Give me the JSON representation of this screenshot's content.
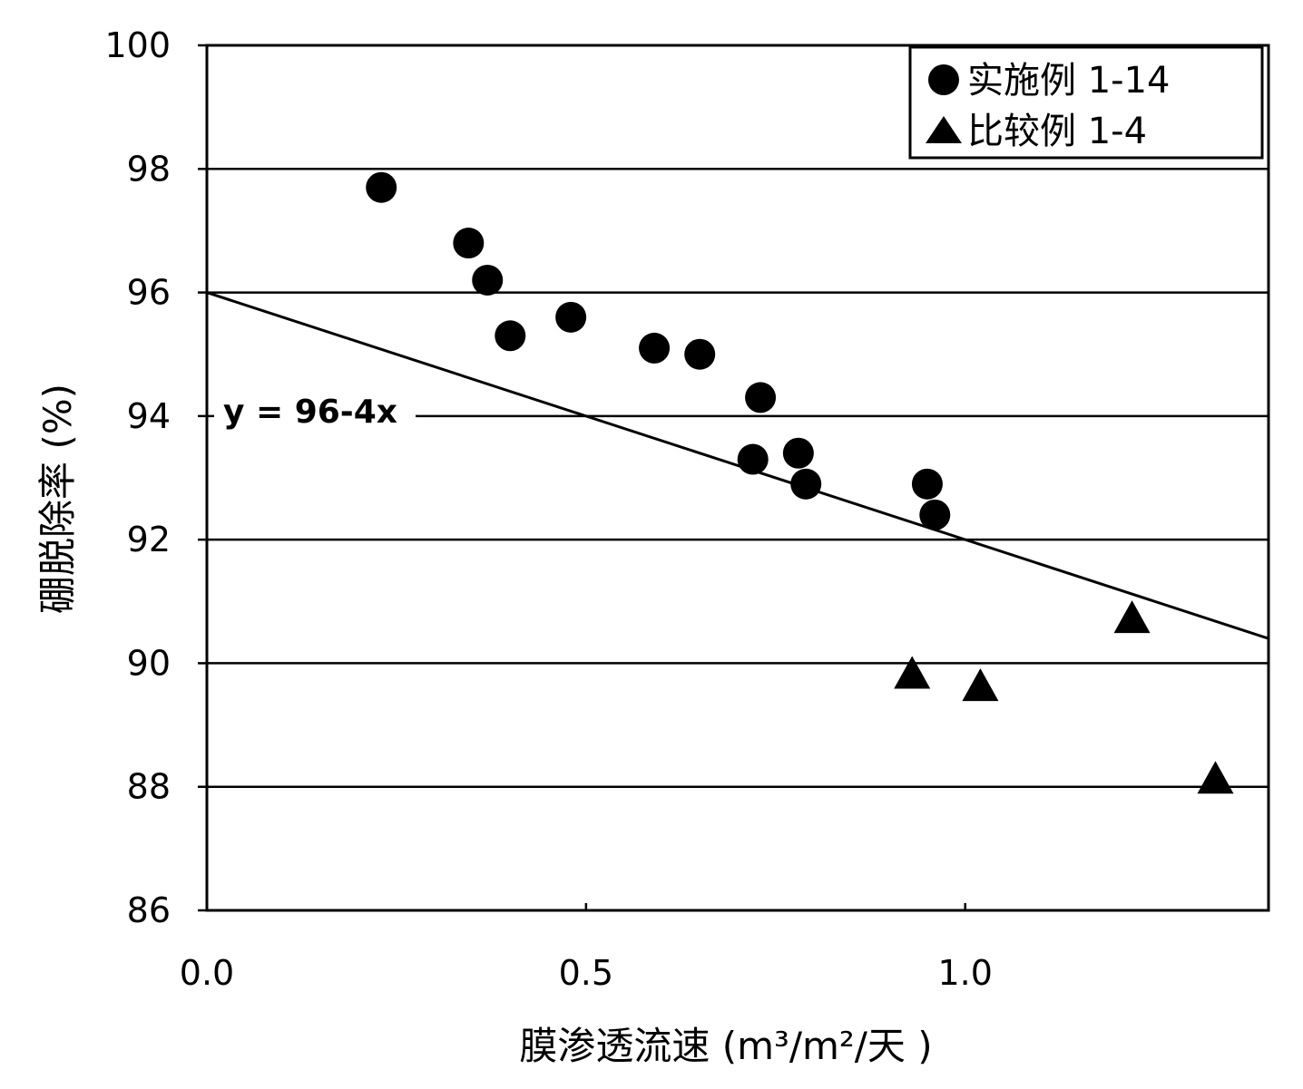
{
  "chart_data": {
    "type": "scatter",
    "xlabel": "膜渗透流速 (m³/m²/天 )",
    "ylabel": "硼脱除率 (%)",
    "xlim": [
      0.0,
      1.4
    ],
    "ylim": [
      86,
      100
    ],
    "x_ticks": [
      0.0,
      0.5,
      1.0
    ],
    "x_tick_labels": [
      "0.0",
      "0.5",
      "1.0"
    ],
    "y_ticks": [
      86,
      88,
      90,
      92,
      94,
      96,
      98,
      100
    ],
    "y_tick_labels": [
      "86",
      "88",
      "90",
      "92",
      "94",
      "96",
      "98",
      "100"
    ],
    "grid": "horizontal",
    "legend_position": "top-right",
    "series": [
      {
        "name": "实施例 1-14",
        "marker": "circle",
        "color": "#000000",
        "points": [
          {
            "x": 0.23,
            "y": 97.7
          },
          {
            "x": 0.345,
            "y": 96.8
          },
          {
            "x": 0.37,
            "y": 96.2
          },
          {
            "x": 0.4,
            "y": 95.3
          },
          {
            "x": 0.48,
            "y": 95.6
          },
          {
            "x": 0.59,
            "y": 95.1
          },
          {
            "x": 0.65,
            "y": 95.0
          },
          {
            "x": 0.73,
            "y": 94.3
          },
          {
            "x": 0.72,
            "y": 93.3
          },
          {
            "x": 0.78,
            "y": 93.4
          },
          {
            "x": 0.79,
            "y": 92.9
          },
          {
            "x": 0.95,
            "y": 92.9
          },
          {
            "x": 0.96,
            "y": 92.4
          }
        ]
      },
      {
        "name": "比较例 1-4",
        "marker": "triangle",
        "color": "#000000",
        "points": [
          {
            "x": 0.93,
            "y": 89.8
          },
          {
            "x": 1.02,
            "y": 89.6
          },
          {
            "x": 1.22,
            "y": 90.7
          },
          {
            "x": 1.33,
            "y": 88.1
          }
        ]
      }
    ],
    "lines": [
      {
        "label": "y = 96-4x",
        "intercept": 96,
        "slope": -4,
        "x_from": 0.0,
        "x_to": 1.4
      }
    ]
  }
}
